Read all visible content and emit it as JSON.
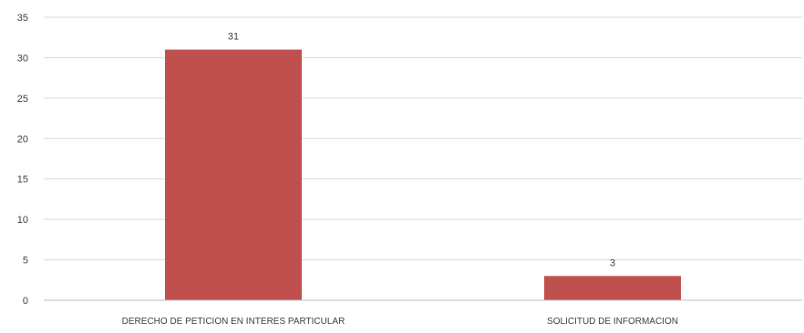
{
  "chart_data": {
    "type": "bar",
    "categories": [
      "DERECHO DE PETICION EN INTERES PARTICULAR",
      "SOLICITUD DE INFORMACION"
    ],
    "values": [
      31,
      3
    ],
    "data_labels": [
      "31",
      "3"
    ],
    "title": "",
    "xlabel": "",
    "ylabel": "",
    "ylim": [
      0,
      35
    ],
    "yticks": [
      0,
      5,
      10,
      15,
      20,
      25,
      30,
      35
    ],
    "grid": true,
    "legend": "none",
    "colors": {
      "bar": "#c0504d",
      "grid": "#d9d9d9",
      "axis": "#bfbfbf",
      "text": "#404040"
    }
  }
}
